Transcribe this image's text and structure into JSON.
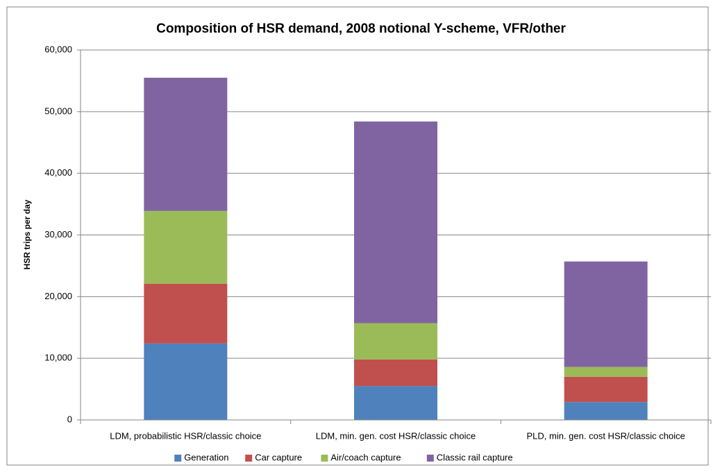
{
  "chart_data": {
    "type": "stacked_bar",
    "title": "Composition of HSR demand, 2008 notional Y-scheme, VFR/other",
    "y_label": "HSR trips per day",
    "categories": [
      "LDM, probabilistic HSR/classic choice",
      "LDM, min. gen. cost HSR/classic choice",
      "PLD, min. gen. cost HSR/classic choice"
    ],
    "series": [
      {
        "name": "Generation",
        "color": "#4f81bd",
        "values": [
          12400,
          5500,
          2900
        ]
      },
      {
        "name": "Car capture",
        "color": "#c0504d",
        "values": [
          9700,
          4300,
          4100
        ]
      },
      {
        "name": "Air/coach capture",
        "color": "#9bbb59",
        "values": [
          11800,
          5900,
          1600
        ]
      },
      {
        "name": "Classic rail capture",
        "color": "#8064a2",
        "values": [
          21600,
          32700,
          17100
        ]
      }
    ],
    "ylim": [
      0,
      60000
    ],
    "yticks": [
      0,
      {
        "value": 10000,
        "label": "10,000"
      },
      {
        "value": 20000,
        "label": "20,000"
      },
      {
        "value": 30000,
        "label": "30,000"
      },
      {
        "value": 40000,
        "label": "40,000"
      },
      {
        "value": 50000,
        "label": "50,000"
      },
      {
        "value": 60000,
        "label": "60,000"
      }
    ],
    "grid": true,
    "legend": "bottom"
  }
}
